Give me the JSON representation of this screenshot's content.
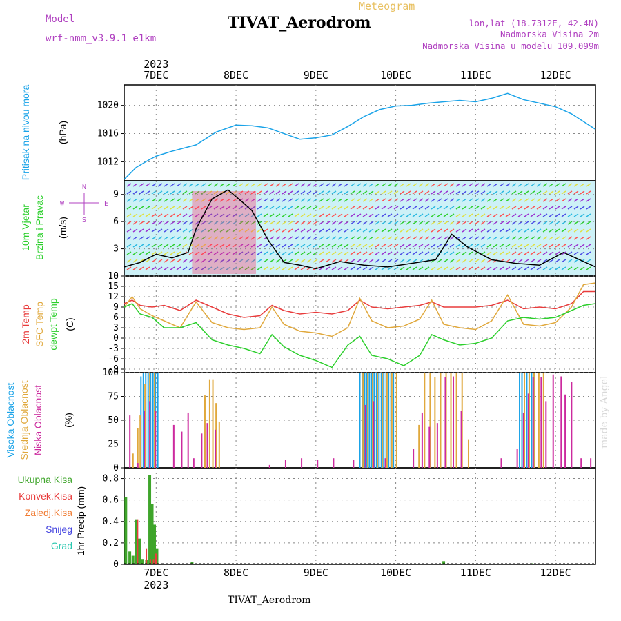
{
  "header": {
    "title": "TIVAT_Aerodrom",
    "supertitle": "Meteogram",
    "model_label": "Model",
    "model_value": "wrf-nmm_v3.9.1 e1km",
    "location": "lon,lat (18.7312E, 42.4N)",
    "elevation": "Nadmorska Visina 2m",
    "model_elevation": "Nadmorska Visina u modelu 109.099m"
  },
  "footer": {
    "station": "TIVAT_Aerodrom",
    "credit": "made by Angel"
  },
  "time_axis": {
    "year": "2023",
    "days": [
      "7DEC",
      "8DEC",
      "9DEC",
      "10DEC",
      "11DEC",
      "12DEC"
    ],
    "start_day": 6.6,
    "end_day": 12.5
  },
  "colors": {
    "pressure": "#1aa3e8",
    "temp2m": "#e83c3c",
    "sfc": "#e0a83c",
    "dewpt": "#2ccf2c",
    "high_cloud": "#1aa3e8",
    "mid_cloud": "#e0a83c",
    "low_cloud": "#cc2a9e",
    "total_precip": "#3fa52b",
    "conv_precip": "#e83c3c",
    "freezing": "#f07a30",
    "snow": "#4646e0",
    "hail": "#2cc8b0",
    "compass": "#b040c0"
  },
  "panels": {
    "pressure": {
      "label": "Pritisak na nivou mora",
      "unit": "(hPa)",
      "ticks": [
        "1012",
        "1016",
        "1020"
      ]
    },
    "wind": {
      "label1": "10m Vjetar",
      "label2": "Brzina i Pravac",
      "unit": "(m/s)",
      "ticks": [
        "0",
        "3",
        "6",
        "9"
      ],
      "compass_n": "N",
      "compass_s": "S",
      "compass_e": "E",
      "compass_w": "W"
    },
    "temp": {
      "label1": "2m Temp",
      "label2": "SFC Temp",
      "label3": "dewpt Temp",
      "unit": "(C)",
      "ticks": [
        "-9",
        "-6",
        "-3",
        "0",
        "3",
        "6",
        "9",
        "12",
        "15",
        "18"
      ]
    },
    "cloud": {
      "label1": "Visoka Oblacnost",
      "label2": "Srednja Oblacnost",
      "label3": "Niska Oblacnost",
      "unit": "(%)",
      "ticks": [
        "0",
        "25",
        "50",
        "75",
        "100"
      ]
    },
    "precip": {
      "unit": "1hr Precip (mm)",
      "ticks": [
        "0",
        "0.2",
        "0.4",
        "0.6",
        "0.8"
      ],
      "legend": [
        "Ukupna Kisa",
        "Konvek.Kisa",
        "Zaledj.Kisa",
        "Snijeg",
        "Grad"
      ]
    }
  },
  "chart_data": [
    {
      "type": "line",
      "title": "Pritisak na nivou mora",
      "ylabel": "(hPa)",
      "ylim": [
        1009.3,
        1022.9
      ],
      "series": [
        {
          "name": "Pritisak na nivou mora",
          "x": [
            6.6,
            6.75,
            6.9,
            7.0,
            7.2,
            7.5,
            7.75,
            8.0,
            8.2,
            8.4,
            8.6,
            8.8,
            9.0,
            9.2,
            9.4,
            9.6,
            9.8,
            10.0,
            10.2,
            10.4,
            10.6,
            10.8,
            11.0,
            11.2,
            11.4,
            11.6,
            11.8,
            12.0,
            12.2,
            12.5
          ],
          "values": [
            1009.5,
            1011.2,
            1012.2,
            1012.8,
            1013.5,
            1014.4,
            1016.2,
            1017.2,
            1017.1,
            1016.8,
            1016.0,
            1015.2,
            1015.4,
            1015.8,
            1017.0,
            1018.4,
            1019.4,
            1019.9,
            1020.0,
            1020.3,
            1020.5,
            1020.7,
            1020.5,
            1021.0,
            1021.7,
            1020.8,
            1020.3,
            1019.8,
            1018.8,
            1016.6
          ]
        }
      ]
    },
    {
      "type": "line",
      "title": "10m Vjetar Brzina i Pravac",
      "ylabel": "(m/s)",
      "ylim": [
        0,
        10.5
      ],
      "series": [
        {
          "name": "10m Vjetar",
          "x": [
            6.6,
            6.8,
            7.0,
            7.2,
            7.4,
            7.5,
            7.7,
            7.9,
            8.1,
            8.2,
            8.4,
            8.6,
            8.8,
            9.0,
            9.3,
            9.6,
            9.9,
            10.2,
            10.5,
            10.7,
            10.9,
            11.2,
            11.5,
            11.8,
            12.1,
            12.3,
            12.5
          ],
          "values": [
            1.0,
            1.5,
            2.4,
            2.0,
            2.6,
            5.2,
            8.5,
            9.5,
            8.0,
            7.2,
            4.0,
            1.5,
            1.2,
            0.8,
            1.6,
            1.2,
            1.0,
            1.4,
            1.8,
            4.6,
            3.2,
            1.8,
            1.4,
            1.2,
            2.6,
            1.8,
            1.0
          ]
        }
      ]
    },
    {
      "type": "line",
      "title": "2m Temp / SFC Temp / dewpt Temp",
      "ylabel": "(C)",
      "ylim": [
        -10,
        18
      ],
      "series": [
        {
          "name": "2m Temp",
          "x": [
            6.6,
            6.7,
            6.8,
            6.95,
            7.1,
            7.3,
            7.5,
            7.7,
            7.9,
            8.1,
            8.3,
            8.45,
            8.6,
            8.8,
            9.0,
            9.2,
            9.4,
            9.55,
            9.7,
            9.9,
            10.1,
            10.3,
            10.45,
            10.6,
            10.8,
            11.0,
            11.2,
            11.4,
            11.6,
            11.8,
            12.0,
            12.2,
            12.35,
            12.5
          ],
          "values": [
            10,
            11,
            9.5,
            9,
            9.5,
            8,
            11,
            9,
            7,
            6,
            6.5,
            9.5,
            8,
            7,
            7.5,
            7,
            8,
            11,
            9,
            8.5,
            9,
            9.5,
            10.5,
            9,
            9,
            9,
            9.5,
            11,
            8.5,
            9,
            8.5,
            10,
            13.5,
            13.5
          ]
        },
        {
          "name": "SFC Temp",
          "x": [
            6.6,
            6.7,
            6.8,
            6.95,
            7.1,
            7.3,
            7.5,
            7.7,
            7.9,
            8.1,
            8.3,
            8.45,
            8.6,
            8.8,
            9.0,
            9.2,
            9.4,
            9.55,
            9.7,
            9.9,
            10.1,
            10.3,
            10.45,
            10.6,
            10.8,
            11.0,
            11.2,
            11.4,
            11.6,
            11.8,
            12.0,
            12.2,
            12.35,
            12.5
          ],
          "values": [
            9,
            12,
            8.5,
            6.5,
            5,
            3,
            10.5,
            4.5,
            3,
            2.5,
            3,
            9,
            4,
            2,
            1.5,
            0.5,
            3,
            11.5,
            5,
            3,
            3.5,
            5.5,
            11,
            4,
            3,
            2.5,
            5,
            12.5,
            4,
            3.5,
            4.5,
            9,
            15.5,
            16
          ]
        },
        {
          "name": "dewpt Temp",
          "x": [
            6.6,
            6.7,
            6.8,
            6.95,
            7.1,
            7.3,
            7.5,
            7.7,
            7.9,
            8.1,
            8.3,
            8.45,
            8.6,
            8.8,
            9.0,
            9.2,
            9.4,
            9.55,
            9.7,
            9.9,
            10.1,
            10.3,
            10.45,
            10.6,
            10.8,
            11.0,
            11.2,
            11.4,
            11.6,
            11.8,
            12.0,
            12.2,
            12.35,
            12.5
          ],
          "values": [
            9,
            10,
            7,
            6,
            3,
            3,
            4.5,
            -0.5,
            -2,
            -3,
            -4.5,
            1,
            -2.5,
            -5,
            -6.5,
            -8.5,
            -2,
            0.5,
            -5,
            -6,
            -8,
            -5,
            1,
            -0.5,
            -2,
            -1.5,
            0,
            5,
            6,
            5.5,
            6,
            8,
            9.5,
            10
          ]
        }
      ]
    },
    {
      "type": "bar",
      "title": "Visoka / Srednja / Niska Oblacnost",
      "ylabel": "(%)",
      "ylim": [
        0,
        100
      ],
      "series": [
        {
          "name": "Visoka Oblacnost",
          "x": [
            6.81,
            6.84,
            6.87,
            6.9,
            6.93,
            6.96,
            6.99,
            7.02,
            9.55,
            9.58,
            9.61,
            9.64,
            9.67,
            9.7,
            9.73,
            9.76,
            9.79,
            9.82,
            9.85,
            9.88,
            9.91,
            9.94,
            9.97,
            11.55,
            11.58,
            11.61,
            11.64,
            11.67,
            11.7,
            11.73
          ],
          "values": [
            96,
            100,
            100,
            100,
            100,
            100,
            100,
            100,
            100,
            100,
            100,
            100,
            100,
            100,
            100,
            100,
            100,
            100,
            100,
            100,
            100,
            100,
            100,
            100,
            100,
            100,
            100,
            100,
            100,
            100
          ]
        },
        {
          "name": "Srednja Oblacnost",
          "x": [
            6.7,
            6.76,
            6.79,
            6.85,
            6.91,
            6.97,
            7.6,
            7.66,
            7.7,
            7.74,
            7.78,
            9.58,
            9.64,
            9.7,
            9.76,
            9.82,
            9.88,
            9.94,
            10.0,
            10.28,
            10.35,
            10.42,
            10.48,
            10.55,
            10.62,
            10.68,
            10.75,
            10.82,
            10.9,
            11.6,
            11.66,
            11.72,
            11.78,
            11.84
          ],
          "values": [
            15,
            42,
            55,
            88,
            100,
            100,
            76,
            93,
            93,
            68,
            48,
            100,
            100,
            100,
            100,
            100,
            100,
            100,
            100,
            45,
            100,
            100,
            95,
            100,
            100,
            100,
            100,
            100,
            30,
            100,
            100,
            100,
            100,
            100
          ]
        },
        {
          "name": "Niska Oblacnost",
          "x": [
            6.65,
            6.75,
            6.83,
            6.9,
            6.97,
            7.2,
            7.3,
            7.38,
            7.45,
            7.55,
            7.62,
            7.72,
            8.4,
            8.6,
            8.8,
            9.0,
            9.2,
            9.45,
            9.6,
            9.7,
            9.85,
            10.2,
            10.31,
            10.4,
            10.5,
            10.6,
            10.7,
            10.8,
            11.3,
            11.5,
            11.58,
            11.64,
            11.7,
            11.8,
            11.86,
            11.95,
            12.05,
            12.1,
            12.18,
            12.3,
            12.42
          ],
          "values": [
            55,
            5,
            60,
            70,
            60,
            45,
            38,
            58,
            10,
            36,
            47,
            40,
            3,
            8,
            10,
            8,
            10,
            8,
            66,
            70,
            10,
            20,
            58,
            43,
            47,
            95,
            96,
            60,
            10,
            20,
            58,
            78,
            95,
            95,
            70,
            98,
            96,
            77,
            90,
            10,
            10
          ]
        }
      ]
    },
    {
      "type": "bar",
      "title": "1hr Precip",
      "ylabel": "1hr Precip (mm)",
      "ylim": [
        0,
        0.9
      ],
      "series": [
        {
          "name": "Ukupna Kisa",
          "x": [
            6.62,
            6.67,
            6.71,
            6.75,
            6.79,
            6.83,
            6.88,
            6.92,
            6.95,
            6.98,
            7.01,
            7.45,
            7.55,
            10.6,
            11.7
          ],
          "values": [
            0.63,
            0.12,
            0.08,
            0.42,
            0.24,
            0.05,
            0.04,
            0.83,
            0.56,
            0.37,
            0.15,
            0.02,
            0.01,
            0.03,
            0.01
          ]
        },
        {
          "name": "Konvek.Kisa",
          "x": [
            6.75,
            6.86,
            6.91,
            6.95,
            6.98
          ],
          "values": [
            0.42,
            0.15,
            0.05,
            0.05,
            0.1
          ]
        },
        {
          "name": "Zaledj.Kisa",
          "x": [],
          "values": []
        },
        {
          "name": "Snijeg",
          "x": [],
          "values": []
        },
        {
          "name": "Grad",
          "x": [],
          "values": []
        }
      ]
    }
  ]
}
